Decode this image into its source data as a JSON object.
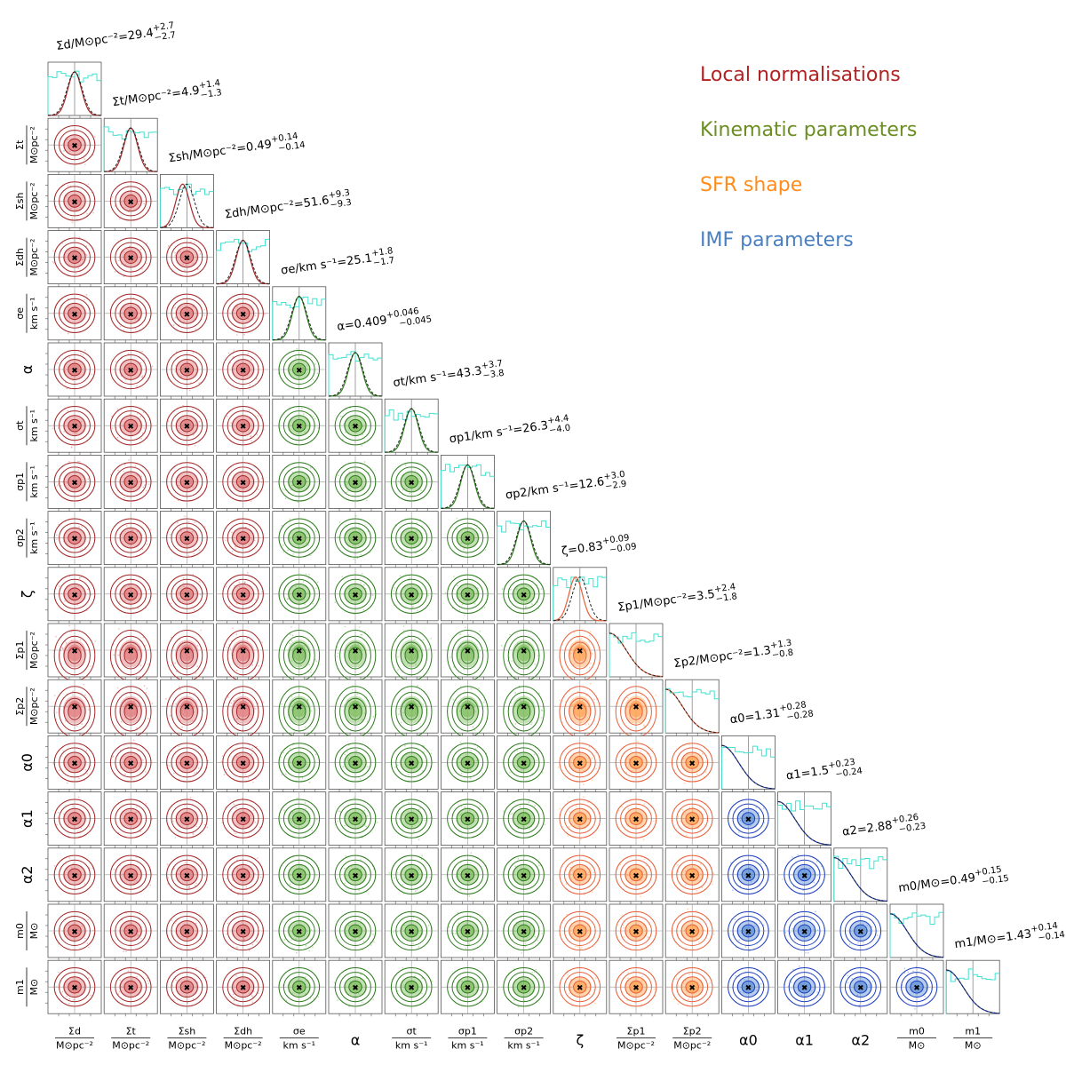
{
  "chart_data": {
    "type": "corner",
    "title": "",
    "parameters": [
      {
        "name": "Sigma_d",
        "group": "local",
        "label_top": "Σd",
        "label_bottom": "M⊙pc⁻²",
        "result_label": "Σd/M⊙pc⁻²",
        "median": "29.4",
        "upper": "+2.7",
        "lower": "−2.7"
      },
      {
        "name": "Sigma_t",
        "group": "local",
        "label_top": "Σt",
        "label_bottom": "M⊙pc⁻²",
        "result_label": "Σt/M⊙pc⁻²",
        "median": "4.9",
        "upper": "+1.4",
        "lower": "−1.3"
      },
      {
        "name": "Sigma_sh",
        "group": "local",
        "label_top": "Σsh",
        "label_bottom": "M⊙pc⁻²",
        "result_label": "Σsh/M⊙pc⁻²",
        "median": "0.49",
        "upper": "+0.14",
        "lower": "−0.14"
      },
      {
        "name": "Sigma_dh",
        "group": "local",
        "label_top": "Σdh",
        "label_bottom": "M⊙pc⁻²",
        "result_label": "Σdh/M⊙pc⁻²",
        "median": "51.6",
        "upper": "+9.3",
        "lower": "−9.3"
      },
      {
        "name": "sigma_e",
        "group": "kinematic",
        "label_top": "σe",
        "label_bottom": "km s⁻¹",
        "result_label": "σe/km s⁻¹",
        "median": "25.1",
        "upper": "+1.8",
        "lower": "−1.7"
      },
      {
        "name": "alpha",
        "group": "kinematic",
        "label_top": "α",
        "label_bottom": "",
        "result_label": "α",
        "median": "0.409",
        "upper": "+0.046",
        "lower": "−0.045"
      },
      {
        "name": "sigma_t",
        "group": "kinematic",
        "label_top": "σt",
        "label_bottom": "km s⁻¹",
        "result_label": "σt/km s⁻¹",
        "median": "43.3",
        "upper": "+3.7",
        "lower": "−3.8"
      },
      {
        "name": "sigma_p1",
        "group": "kinematic",
        "label_top": "σp1",
        "label_bottom": "km s⁻¹",
        "result_label": "σp1/km s⁻¹",
        "median": "26.3",
        "upper": "+4.4",
        "lower": "−4.0"
      },
      {
        "name": "sigma_p2",
        "group": "kinematic",
        "label_top": "σp2",
        "label_bottom": "km s⁻¹",
        "result_label": "σp2/km s⁻¹",
        "median": "12.6",
        "upper": "+3.0",
        "lower": "−2.9"
      },
      {
        "name": "zeta",
        "group": "sfr",
        "label_top": "ζ",
        "label_bottom": "",
        "result_label": "ζ",
        "median": "0.83",
        "upper": "+0.09",
        "lower": "−0.09"
      },
      {
        "name": "Sigma_p1",
        "group": "sfr",
        "label_top": "Σp1",
        "label_bottom": "M⊙pc⁻²",
        "result_label": "Σp1/M⊙pc⁻²",
        "median": "3.5",
        "upper": "+2.4",
        "lower": "−1.8"
      },
      {
        "name": "Sigma_p2",
        "group": "sfr",
        "label_top": "Σp2",
        "label_bottom": "M⊙pc⁻²",
        "result_label": "Σp2/M⊙pc⁻²",
        "median": "1.3",
        "upper": "+1.3",
        "lower": "−0.8"
      },
      {
        "name": "alpha_0",
        "group": "imf",
        "label_top": "α0",
        "label_bottom": "",
        "result_label": "α0",
        "median": "1.31",
        "upper": "+0.28",
        "lower": "−0.28"
      },
      {
        "name": "alpha_1",
        "group": "imf",
        "label_top": "α1",
        "label_bottom": "",
        "result_label": "α1",
        "median": "1.5",
        "upper": "+0.23",
        "lower": "−0.24"
      },
      {
        "name": "alpha_2",
        "group": "imf",
        "label_top": "α2",
        "label_bottom": "",
        "result_label": "α2",
        "median": "2.88",
        "upper": "+0.26",
        "lower": "−0.23"
      },
      {
        "name": "m_0",
        "group": "imf",
        "label_top": "m0",
        "label_bottom": "M⊙",
        "result_label": "m0/M⊙",
        "median": "0.49",
        "upper": "+0.15",
        "lower": "−0.15"
      },
      {
        "name": "m_1",
        "group": "imf",
        "label_top": "m1",
        "label_bottom": "M⊙",
        "result_label": "m1/M⊙",
        "median": "1.43",
        "upper": "+0.14",
        "lower": "−0.14"
      }
    ],
    "groups": [
      {
        "key": "local",
        "label": "Local normalisations",
        "color": "#b22222"
      },
      {
        "key": "kinematic",
        "label": "Kinematic parameters",
        "color": "#6b8e23"
      },
      {
        "key": "sfr",
        "label": "SFR shape",
        "color": "#ff8c1a"
      },
      {
        "key": "imf",
        "label": "IMF parameters",
        "color": "#4a7fc1"
      }
    ],
    "legend_position": "top-right",
    "prior_histogram_color": "#40e0d0",
    "true_value_line_color": "#888888"
  },
  "colors": {
    "local_fill": "#e0787a",
    "local_line": "#a52a2a",
    "kinematic_fill": "#7cba5a",
    "kinematic_line": "#2e7d1e",
    "sfr_fill": "#ffa04d",
    "sfr_line": "#e8603a",
    "imf_fill": "#5b8ed6",
    "imf_line": "#1f3fbf",
    "marker": "#000000"
  }
}
